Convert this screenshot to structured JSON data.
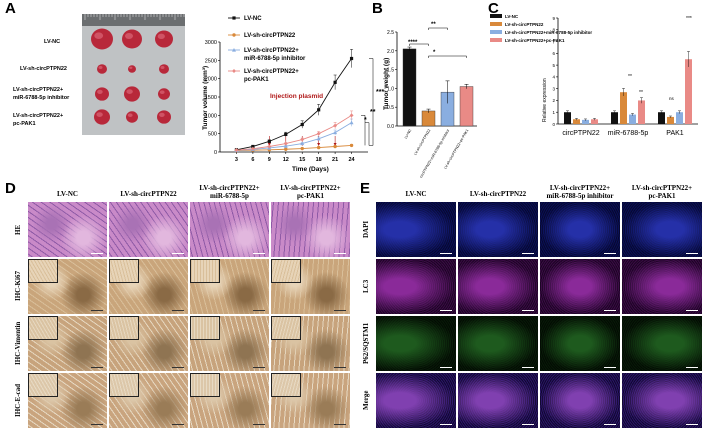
{
  "panels": {
    "A": "A",
    "B": "B",
    "C": "C",
    "D": "D",
    "E": "E"
  },
  "photo": {
    "labels": [
      "LV-NC",
      "LV-sh-circPTPN22",
      "LV-sh-circPTPN22+",
      "miR-6788-5p inhibitor",
      "LV-sh-circPTPN22+",
      "pc-PAK1"
    ]
  },
  "chartA": {
    "ylabel": "Tumor volume (mm³)",
    "xlabel": "Time (Days)",
    "annotation": "Injection plasmid",
    "sig": [
      "***",
      "**",
      "*"
    ],
    "legend": [
      "LV-NC",
      "LV-sh-circPTPN22",
      "LV-sh-circPTPN22+",
      "miR-6788-5p inhibitor",
      "LV-sh-circPTPN22+",
      "pc-PAK1"
    ],
    "yticks": [
      "0",
      "500",
      "1000",
      "1500",
      "2000",
      "2500",
      "3000"
    ],
    "xticks": [
      "3",
      "6",
      "9",
      "12",
      "15",
      "18",
      "21",
      "24"
    ]
  },
  "chartB": {
    "ylabel": "Tumor weight (g)",
    "yticks": [
      "0.0",
      "0.5",
      "1.0",
      "1.5",
      "2.0",
      "2.5"
    ],
    "categories": [
      "LV-NC",
      "LV-sh-circPTPN22",
      "LV-sh-circPTPN22+miR-6788-5p inhibitor",
      "LV-sh-circPTPN22+pc-PAK1"
    ],
    "sig": [
      "****",
      "*",
      "**"
    ]
  },
  "chartC": {
    "ylabel": "Relative expression",
    "yticks": [
      "0",
      "1",
      "2",
      "3",
      "4",
      "5",
      "6",
      "7",
      "8",
      "9"
    ],
    "groups": [
      "circPTPN22",
      "miR-6788-5p",
      "PAK1"
    ],
    "legend": [
      "LV-NC",
      "LV-sh-circPTPN22",
      "LV-sh-circPTPN22+miR-6788-5p inhibitor",
      "LV-sh-circPTPN22+pc-PAK1"
    ],
    "sig_mir": [
      "**",
      "**"
    ],
    "sig_pak": [
      "ns",
      "***"
    ]
  },
  "chart_data": [
    {
      "type": "line",
      "x": [
        3,
        6,
        9,
        12,
        15,
        18,
        21,
        24
      ],
      "xlabel": "Time (Days)",
      "ylabel": "Tumor volume (mm³)",
      "ylim": [
        0,
        3000
      ],
      "series": [
        {
          "name": "LV-NC",
          "values": [
            60,
            150,
            290,
            480,
            750,
            1150,
            1900,
            2550
          ],
          "err": [
            10,
            20,
            40,
            60,
            100,
            150,
            200,
            250
          ]
        },
        {
          "name": "LV-sh-circPTPN22",
          "values": [
            40,
            50,
            60,
            75,
            95,
            120,
            150,
            180
          ],
          "err": [
            5,
            5,
            8,
            10,
            12,
            15,
            20,
            25
          ]
        },
        {
          "name": "LV-sh-circPTPN22+miR-6788-5p inhibitor",
          "values": [
            45,
            70,
            110,
            160,
            230,
            360,
            530,
            800
          ],
          "err": [
            5,
            10,
            15,
            20,
            30,
            50,
            70,
            100
          ]
        },
        {
          "name": "LV-sh-circPTPN22+pc-PAK1",
          "values": [
            50,
            90,
            150,
            230,
            340,
            500,
            720,
            1000
          ],
          "err": [
            5,
            10,
            20,
            25,
            40,
            60,
            90,
            120
          ]
        }
      ]
    },
    {
      "type": "bar",
      "categories": [
        "LV-NC",
        "LV-sh-circPTPN22",
        "LV-sh-circPTPN22+miR-6788-5p inhibitor",
        "LV-sh-circPTPN22+pc-PAK1"
      ],
      "values": [
        2.05,
        0.4,
        0.9,
        1.05
      ],
      "err": [
        0.05,
        0.05,
        0.3,
        0.06
      ],
      "ylabel": "Tumor weight (g)",
      "ylim": [
        0,
        2.5
      ]
    },
    {
      "type": "bar",
      "categories": [
        "circPTPN22",
        "miR-6788-5p",
        "PAK1"
      ],
      "ylabel": "Relative expression",
      "ylim": [
        0,
        9
      ],
      "series": [
        {
          "name": "LV-NC",
          "values": [
            1.0,
            1.0,
            1.0
          ]
        },
        {
          "name": "LV-sh-circPTPN22",
          "values": [
            0.4,
            2.7,
            0.6
          ]
        },
        {
          "name": "LV-sh-circPTPN22+miR-6788-5p inhibitor",
          "values": [
            0.35,
            0.8,
            1.0
          ]
        },
        {
          "name": "LV-sh-circPTPN22+pc-PAK1",
          "values": [
            0.4,
            2.0,
            5.5
          ]
        }
      ]
    }
  ],
  "histology": {
    "columns": [
      [
        "LV-NC"
      ],
      [
        "LV-sh-circPTPN22"
      ],
      [
        "LV-sh-circPTPN22+",
        "miR-6788-5p"
      ],
      [
        "LV-sh-circPTPN22+",
        "pc-PAK1"
      ]
    ],
    "rows": [
      "HE",
      "IHC-Ki67",
      "IHC-Vimentin",
      "IHC-E-cad"
    ]
  },
  "fluor": {
    "columns": [
      [
        "LV-NC"
      ],
      [
        "LV-sh-circPTPN22"
      ],
      [
        "LV-sh-circPTPN22+",
        "miR-6788-5p inhibitor"
      ],
      [
        "LV-sh-circPTPN22+",
        "pc-PAK1"
      ]
    ],
    "rows": [
      "DAPI",
      "LC3",
      "P62/SQSTM1",
      "Merge"
    ]
  },
  "colors": {
    "black": "#111111",
    "orange": "#d9893a",
    "blue": "#8aaee0",
    "pink": "#e98a86",
    "red_text": "#b01818"
  }
}
